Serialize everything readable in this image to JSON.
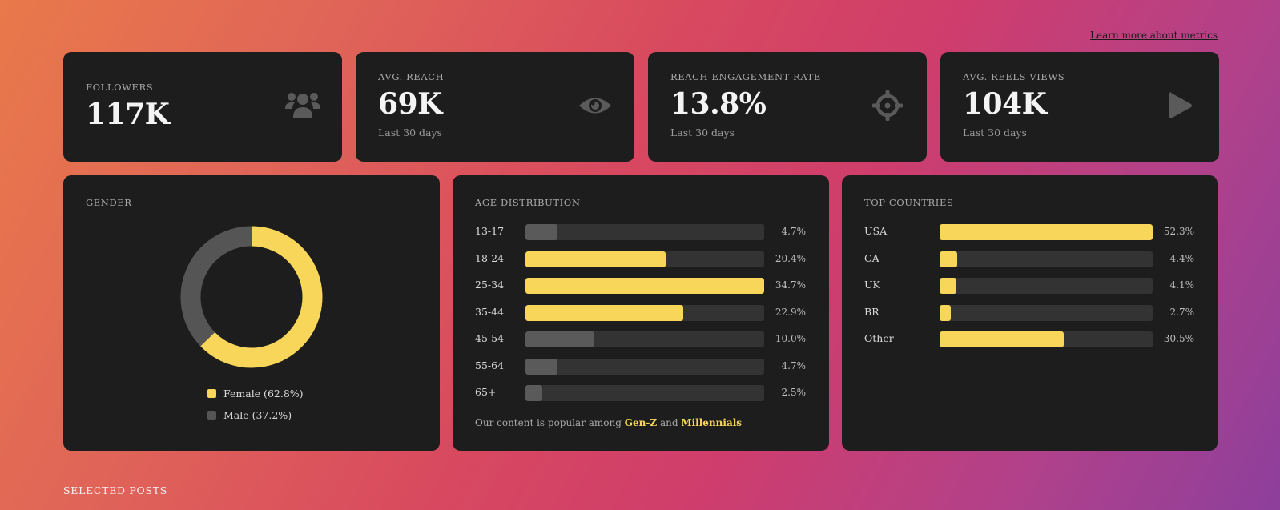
{
  "header": {
    "learn_more_link": "Learn more about metrics"
  },
  "stats": [
    {
      "label": "FOLLOWERS",
      "value": "117K",
      "sub": "",
      "icon": "users-icon"
    },
    {
      "label": "AVG. REACH",
      "value": "69K",
      "sub": "Last 30 days",
      "icon": "eye-icon"
    },
    {
      "label": "REACH ENGAGEMENT RATE",
      "value": "13.8%",
      "sub": "Last 30 days",
      "icon": "crosshair-icon"
    },
    {
      "label": "AVG. REELS VIEWS",
      "value": "104K",
      "sub": "Last 30 days",
      "icon": "play-icon"
    }
  ],
  "gender": {
    "title": "GENDER",
    "female_label": "Female (62.8%)",
    "male_label": "Male (37.2%)"
  },
  "age": {
    "title": "AGE DISTRIBUTION",
    "footnote_prefix": "Our content is popular among",
    "footnote_hl1": "Gen-Z",
    "footnote_mid": "and",
    "footnote_hl2": "Millennials"
  },
  "countries": {
    "title": "TOP COUNTRIES"
  },
  "sections": {
    "selected_posts": "SELECTED POSTS"
  },
  "colors": {
    "accent": "#f8d65a",
    "muted_bar": "#5a5a5a",
    "track": "#333333",
    "card": "#1d1d1d"
  },
  "chart_data": [
    {
      "type": "pie",
      "title": "GENDER",
      "categories": [
        "Female",
        "Male"
      ],
      "values": [
        62.8,
        37.2
      ],
      "colors": [
        "#f8d65a",
        "#555555"
      ]
    },
    {
      "type": "bar",
      "title": "AGE DISTRIBUTION",
      "categories": [
        "13-17",
        "18-24",
        "25-34",
        "35-44",
        "45-54",
        "55-64",
        "65+"
      ],
      "values": [
        4.7,
        20.4,
        34.7,
        22.9,
        10.0,
        4.7,
        2.5
      ],
      "value_labels": [
        "4.7%",
        "20.4%",
        "34.7%",
        "22.9%",
        "10.0%",
        "4.7%",
        "2.5%"
      ],
      "highlighted": [
        false,
        true,
        true,
        true,
        false,
        false,
        false
      ],
      "xlim": [
        0,
        34.7
      ]
    },
    {
      "type": "bar",
      "title": "TOP COUNTRIES",
      "categories": [
        "USA",
        "CA",
        "UK",
        "BR",
        "Other"
      ],
      "values": [
        52.3,
        4.4,
        4.1,
        2.7,
        30.5
      ],
      "value_labels": [
        "52.3%",
        "4.4%",
        "4.1%",
        "2.7%",
        "30.5%"
      ],
      "xlim": [
        0,
        52.3
      ]
    }
  ]
}
